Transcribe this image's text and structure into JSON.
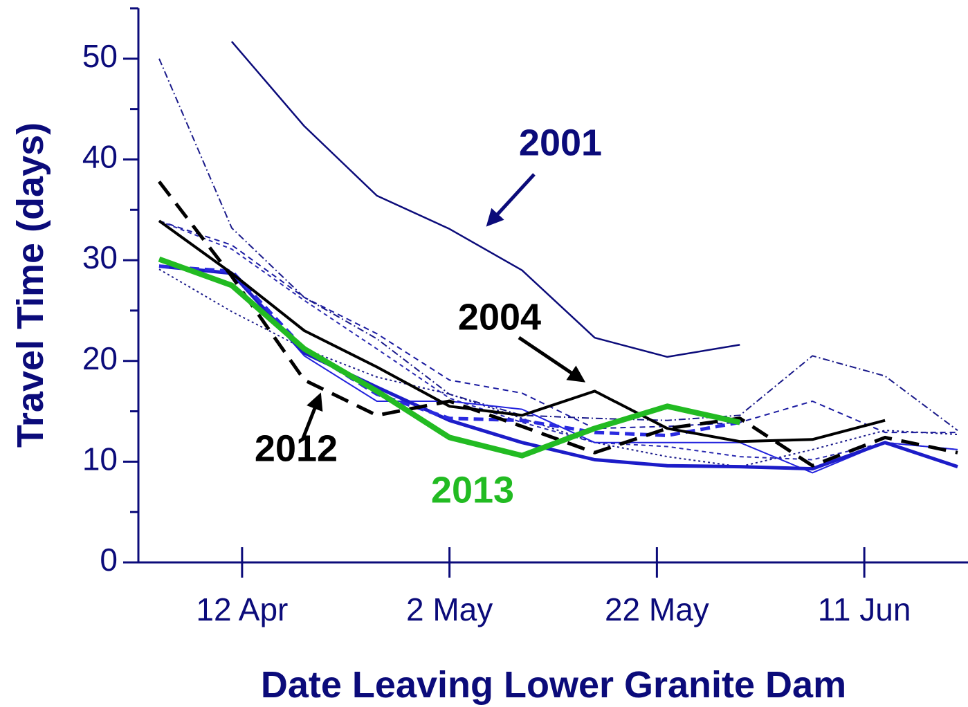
{
  "chart_data": {
    "type": "line",
    "x_label": "Date Leaving Lower Granite Dam",
    "y_label": "Travel Time (days)",
    "x": [
      "04-04",
      "04-11",
      "04-18",
      "04-25",
      "05-02",
      "05-09",
      "05-16",
      "05-23",
      "05-30",
      "06-06",
      "06-13",
      "06-20"
    ],
    "xlim": [
      "04-02",
      "06-21"
    ],
    "xticks": [
      {
        "value": "04-12",
        "label": "12 Apr"
      },
      {
        "value": "05-02",
        "label": "2 May"
      },
      {
        "value": "05-22",
        "label": "22 May"
      },
      {
        "value": "06-11",
        "label": "11 Jun"
      }
    ],
    "ylim": [
      0,
      55
    ],
    "yticks": [
      0,
      10,
      20,
      30,
      40,
      50
    ],
    "yminorticks": [
      5,
      15,
      25,
      35,
      45,
      55
    ],
    "axis_color": "#0b0b7a",
    "series": [
      {
        "color": "#1a1aa0",
        "width": 2,
        "dash": "8,6",
        "values": [
          33.9,
          31.5,
          26.3,
          22.7,
          18.1,
          16.8,
          13.3,
          13.5,
          13.9,
          16.0,
          12.9,
          12.9
        ]
      },
      {
        "color": "#1a1a8a",
        "width": 2,
        "dash": "10,4,2,4",
        "values": [
          50.0,
          33.2,
          26.3,
          22.2,
          16.7,
          14.6,
          14.3,
          14.1,
          14.6,
          20.5,
          18.5,
          13.1
        ]
      },
      {
        "color": "#1a1a8a",
        "width": 2,
        "dash": "3,4",
        "values": [
          29.1,
          24.9,
          21.2,
          18.4,
          16.7,
          14.3,
          11.9,
          10.5,
          9.5,
          11.2,
          13.1,
          12.7
        ]
      },
      {
        "color": "#2a2ab0",
        "width": 2,
        "dash": "6,5",
        "values": [
          33.9,
          31.1,
          26.0,
          21.2,
          16.3,
          13.9,
          11.9,
          11.5,
          10.5,
          10.2,
          11.9,
          11.2
        ]
      },
      {
        "color": "#2222dd",
        "width": 2,
        "dash": "",
        "values": [
          29.4,
          28.7,
          20.5,
          16.0,
          16.0,
          15.2,
          11.9,
          11.9,
          11.9,
          8.9,
          11.9,
          11.2
        ]
      },
      {
        "color": "#1c1cc8",
        "width": 5,
        "dash": "",
        "values": [
          29.4,
          28.7,
          20.8,
          17.4,
          14.1,
          11.9,
          10.2,
          9.6,
          9.5,
          9.3,
          11.9,
          9.5
        ]
      },
      {
        "color": "#2a2ae0",
        "width": 5,
        "dash": "14,8",
        "values": [
          29.4,
          28.9,
          21.2,
          16.7,
          14.3,
          14.1,
          12.9,
          12.6,
          13.9,
          null,
          null,
          null
        ]
      },
      {
        "name": "2001",
        "color": "#0b0b7a",
        "width": 2.5,
        "dash": "",
        "values": [
          null,
          51.7,
          43.3,
          36.4,
          33.1,
          29.0,
          22.3,
          20.4,
          21.6,
          null,
          null,
          null
        ]
      },
      {
        "name": "2004",
        "color": "#000000",
        "width": 4,
        "dash": "",
        "values": [
          33.9,
          28.7,
          23.0,
          19.4,
          15.5,
          14.6,
          17.0,
          13.3,
          12.0,
          12.2,
          14.1,
          null
        ]
      },
      {
        "name": "2012",
        "color": "#000000",
        "width": 5,
        "dash": "26,14",
        "values": [
          37.8,
          28.4,
          18.1,
          14.6,
          16.0,
          13.5,
          10.9,
          13.3,
          14.3,
          9.6,
          12.4,
          10.9
        ]
      },
      {
        "name": "2013",
        "color": "#22bb22",
        "width": 8,
        "dash": "",
        "values": [
          30.1,
          27.5,
          21.2,
          17.0,
          12.4,
          10.6,
          13.3,
          15.5,
          13.9,
          null,
          null,
          null
        ]
      }
    ],
    "annotations": [
      {
        "text": "2001",
        "color": "#0b0b7a"
      },
      {
        "text": "2004",
        "color": "#000000"
      },
      {
        "text": "2012",
        "color": "#000000"
      },
      {
        "text": "2013",
        "color": "#22bb22"
      }
    ]
  }
}
